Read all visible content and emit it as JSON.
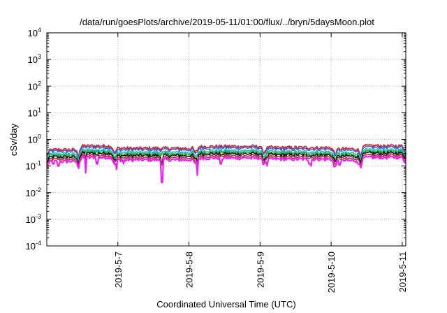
{
  "chart_data": {
    "type": "line",
    "title": "/data/run/goesPlots/archive/2019-05-11/01:00/flux/../bryn/5daysMoon.plot",
    "xlabel": "Coordinated Universal Time (UTC)",
    "ylabel": "cSv/day",
    "yscale": "log",
    "ylim": [
      0.0001,
      10000
    ],
    "ytick_exponents": [
      -4,
      -3,
      -2,
      -1,
      0,
      1,
      2,
      3,
      4
    ],
    "xlim_days": [
      0,
      5.05
    ],
    "xticks": [
      {
        "label": "2019-5-7",
        "day": 1
      },
      {
        "label": "2019-5-8",
        "day": 2
      },
      {
        "label": "2019-5-9",
        "day": 3
      },
      {
        "label": "2019-5-10",
        "day": 4
      },
      {
        "label": "2019-5-11",
        "day": 5
      }
    ],
    "grid": true,
    "legend": "none",
    "series": [
      {
        "color": "#e41a1c",
        "base": 0.55
      },
      {
        "color": "#3366dd",
        "base": 0.48
      },
      {
        "color": "#22bbbb",
        "base": 0.38
      },
      {
        "color": "#33aa33",
        "base": 0.33
      },
      {
        "color": "#111111",
        "base": 0.29
      },
      {
        "color": "#aa3344",
        "base": 0.24
      },
      {
        "color": "#ee22ee",
        "base": 0.2
      }
    ],
    "segments": [
      [
        0.0,
        0.45
      ],
      [
        0.45,
        0.95
      ],
      [
        0.95,
        2.1
      ],
      [
        2.1,
        3.05
      ],
      [
        3.05,
        4.05
      ],
      [
        4.05,
        4.42
      ],
      [
        4.42,
        5.05
      ]
    ],
    "segment_levels": [
      0.75,
      1.05,
      0.85,
      1.0,
      0.9,
      0.8,
      1.05
    ],
    "dips": [
      {
        "day": 0.09,
        "value": 0.12
      },
      {
        "day": 0.16,
        "value": 0.1
      },
      {
        "day": 0.55,
        "value": 0.055
      },
      {
        "day": 0.71,
        "value": 0.12
      },
      {
        "day": 0.98,
        "value": 0.075
      },
      {
        "day": 1.08,
        "value": 0.12
      },
      {
        "day": 1.62,
        "value": 0.024
      },
      {
        "day": 2.12,
        "value": 0.045
      },
      {
        "day": 2.45,
        "value": 0.12
      },
      {
        "day": 3.1,
        "value": 0.1
      },
      {
        "day": 3.7,
        "value": 0.12
      },
      {
        "day": 3.72,
        "value": 0.1
      },
      {
        "day": 4.05,
        "value": 0.095
      },
      {
        "day": 4.12,
        "value": 0.11
      },
      {
        "day": 4.38,
        "value": 0.12
      }
    ]
  }
}
